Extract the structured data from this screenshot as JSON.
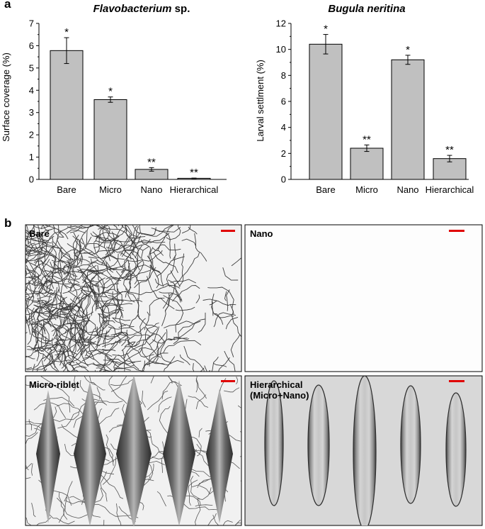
{
  "panels": {
    "a": "a",
    "b": "b"
  },
  "chart_data": [
    {
      "type": "bar",
      "title": "Flavobacterium sp.",
      "title_italic": "Flavobacterium",
      "title_rest": " sp.",
      "ylabel": "Surface coverage (%)",
      "xlabel": "",
      "ylim": [
        0,
        7
      ],
      "yticks": [
        0,
        1,
        2,
        3,
        4,
        5,
        6,
        7
      ],
      "categories": [
        "Bare",
        "Micro",
        "Nano",
        "Hierarchical"
      ],
      "values": [
        5.78,
        3.58,
        0.45,
        0.05
      ],
      "errors": [
        0.58,
        0.12,
        0.08,
        0.01
      ],
      "annotations": [
        "*",
        "*",
        "**",
        "**"
      ],
      "bar_color": "#c0c0c0"
    },
    {
      "type": "bar",
      "title": "Bugula neritina",
      "ylabel": "Larval settlment (%)",
      "xlabel": "",
      "ylim": [
        0,
        12
      ],
      "yticks": [
        0,
        2,
        4,
        6,
        8,
        10,
        12
      ],
      "categories": [
        "Bare",
        "Micro",
        "Nano",
        "Hierarchical"
      ],
      "values": [
        10.4,
        2.4,
        9.2,
        1.6
      ],
      "errors": [
        0.75,
        0.25,
        0.35,
        0.25
      ],
      "annotations": [
        "*",
        "**",
        "*",
        "**"
      ],
      "bar_color": "#c0c0c0"
    }
  ],
  "micrographs": [
    {
      "id": "bare",
      "label": "Bare",
      "background": "light",
      "fouling": "dense"
    },
    {
      "id": "nano",
      "label": "Nano",
      "background": "white",
      "fouling": "none"
    },
    {
      "id": "micro-riblet",
      "label": "Micro-riblet",
      "background": "light",
      "fouling": "moderate"
    },
    {
      "id": "hierarchical",
      "label_line1": "Hierarchical",
      "label_line2": "(Micro+Nano)",
      "background": "grey",
      "fouling": "none"
    }
  ],
  "scale_bar_color": "#e00000"
}
